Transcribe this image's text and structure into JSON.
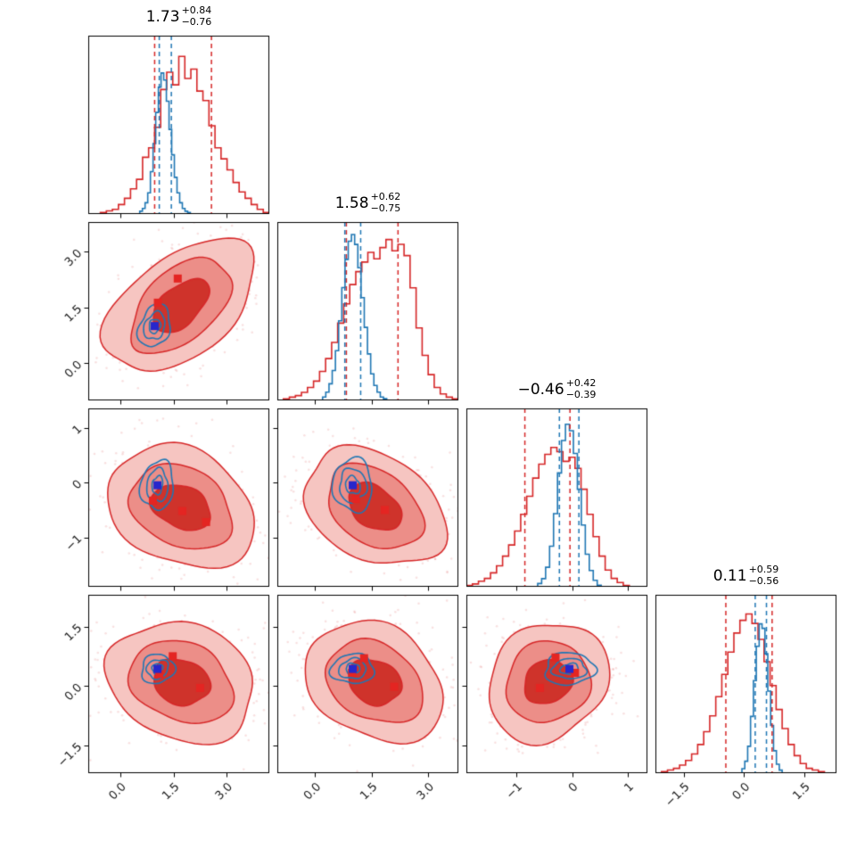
{
  "figure": {
    "type": "corner-plot",
    "background": "#ffffff"
  },
  "chart_data": {
    "type": "corner",
    "n_parameters": 4,
    "series": [
      {
        "name": "red",
        "color": "#d62728",
        "style": "filled-contours-scatter-histogram"
      },
      {
        "name": "blue",
        "color": "#1f77b4",
        "style": "contour-lines-histogram"
      }
    ],
    "colors": {
      "background": "#ffffff",
      "text": "#111111",
      "red_line": "#d62728",
      "red_fills": [
        "#f6c5c1",
        "#ec8e88",
        "#cf332b"
      ],
      "scatter": "rgba(217,65,62,0.16)",
      "blue_line": "#1f77b4",
      "red_marker": "#e42522",
      "blue_marker": "#2727cc"
    },
    "parameters": [
      {
        "title": {
          "median": "1.73",
          "plus": "+0.84",
          "minus": "−0.76"
        },
        "range": [
          -0.9,
          4.2
        ],
        "ticks": [
          0.0,
          1.5,
          3.0
        ],
        "tick_labels": [
          "0.0",
          "1.5",
          "3.0"
        ],
        "red": {
          "median": 1.73,
          "q16": 0.97,
          "q84": 2.57,
          "peak_scale": 0.95,
          "hist_range": [
            -0.9,
            4.2
          ],
          "hist": [
            0,
            0,
            0.01,
            0.02,
            0.03,
            0.06,
            0.1,
            0.16,
            0.22,
            0.36,
            0.42,
            0.55,
            0.79,
            0.9,
            0.82,
            1.0,
            0.86,
            0.92,
            0.78,
            0.72,
            0.56,
            0.42,
            0.35,
            0.28,
            0.2,
            0.14,
            0.1,
            0.06,
            0.03,
            0.01
          ]
        },
        "blue": {
          "mean": 1.26,
          "q16": 1.1,
          "q84": 1.44,
          "peak_scale": 0.85,
          "hist_range": [
            0.55,
            2.05
          ],
          "hist": [
            0.02,
            0.04,
            0.08,
            0.15,
            0.3,
            0.5,
            0.72,
            0.9,
            1.0,
            0.95,
            0.8,
            0.6,
            0.42,
            0.26,
            0.15,
            0.08,
            0.04,
            0.02,
            0.01,
            0.0
          ]
        }
      },
      {
        "title": {
          "median": "1.58",
          "plus": "+0.62",
          "minus": "−0.75"
        },
        "range": [
          -1.0,
          3.8
        ],
        "ticks": [
          0.0,
          1.5,
          3.0
        ],
        "tick_labels": [
          "0.0",
          "1.5",
          "3.0"
        ],
        "red": {
          "median": 1.58,
          "q16": 0.83,
          "q84": 2.2,
          "peak_scale": 0.97,
          "hist_range": [
            -1.0,
            3.8
          ],
          "hist": [
            0.0,
            0.01,
            0.02,
            0.03,
            0.05,
            0.08,
            0.12,
            0.18,
            0.26,
            0.36,
            0.48,
            0.6,
            0.72,
            0.8,
            0.86,
            0.92,
            0.88,
            0.95,
            1.0,
            0.93,
            0.97,
            0.9,
            0.7,
            0.45,
            0.28,
            0.16,
            0.08,
            0.04,
            0.02,
            0.01
          ]
        },
        "blue": {
          "mean": 1.0,
          "q16": 0.79,
          "q84": 1.21,
          "peak_scale": 1.0,
          "hist_range": [
            0.2,
            1.9
          ],
          "hist": [
            0.02,
            0.05,
            0.1,
            0.18,
            0.3,
            0.48,
            0.68,
            0.85,
            0.96,
            1.0,
            0.94,
            0.8,
            0.62,
            0.44,
            0.28,
            0.16,
            0.09,
            0.05,
            0.02,
            0.01
          ]
        }
      },
      {
        "title": {
          "median": "−0.46",
          "plus": "+0.42",
          "minus": "−0.39"
        },
        "range": [
          -1.9,
          1.35
        ],
        "ticks": [
          -1,
          0,
          1
        ],
        "tick_labels": [
          "−1",
          "0",
          "1"
        ],
        "red": {
          "median": -0.46,
          "q16": -0.85,
          "q84": -0.04,
          "peak_scale": 0.84,
          "hist_range": [
            -1.9,
            1.35
          ],
          "hist": [
            0.01,
            0.02,
            0.04,
            0.06,
            0.1,
            0.15,
            0.22,
            0.3,
            0.4,
            0.52,
            0.65,
            0.78,
            0.88,
            0.95,
            1.0,
            0.97,
            0.9,
            0.93,
            0.85,
            0.7,
            0.52,
            0.36,
            0.22,
            0.12,
            0.06,
            0.03,
            0.01,
            0.0,
            0.0,
            0.0
          ]
        },
        "blue": {
          "mean": -0.05,
          "q16": -0.23,
          "q84": 0.12,
          "peak_scale": 0.98,
          "hist_range": [
            -0.62,
            0.52
          ],
          "hist": [
            0.02,
            0.05,
            0.12,
            0.25,
            0.45,
            0.7,
            0.9,
            1.0,
            0.96,
            0.82,
            0.6,
            0.38,
            0.2,
            0.1,
            0.04,
            0.01
          ]
        }
      },
      {
        "title": {
          "median": "0.11",
          "plus": "+0.59",
          "minus": "−0.56"
        },
        "range": [
          -2.2,
          2.3
        ],
        "ticks": [
          -1.5,
          0.0,
          1.5
        ],
        "tick_labels": [
          "−1.5",
          "0.0",
          "1.5"
        ],
        "red": {
          "median": 0.11,
          "q16": -0.45,
          "q84": 0.7,
          "peak_scale": 0.96,
          "hist_range": [
            -2.2,
            2.3
          ],
          "hist": [
            0.0,
            0.01,
            0.02,
            0.03,
            0.05,
            0.08,
            0.12,
            0.18,
            0.26,
            0.36,
            0.48,
            0.62,
            0.76,
            0.88,
            0.96,
            1.0,
            0.94,
            0.84,
            0.7,
            0.55,
            0.4,
            0.28,
            0.18,
            0.11,
            0.06,
            0.03,
            0.02,
            0.01,
            0.0,
            0.0
          ]
        },
        "blue": {
          "mean": 0.42,
          "q16": 0.28,
          "q84": 0.56,
          "peak_scale": 0.9,
          "hist_range": [
            -0.05,
            0.95
          ],
          "hist": [
            0.03,
            0.08,
            0.18,
            0.38,
            0.62,
            0.85,
            1.0,
            0.97,
            0.8,
            0.55,
            0.32,
            0.15,
            0.06,
            0.02
          ]
        }
      }
    ],
    "pairs": [
      {
        "x": 0,
        "y": 1,
        "red": {
          "center": [
            1.7,
            1.55
          ],
          "sigma": [
            0.8,
            0.7
          ],
          "rho": 0.5
        },
        "blue": {
          "center": [
            0.97,
            1.0
          ],
          "sigma": [
            0.17,
            0.22
          ],
          "rho": 0.15
        },
        "red_markers": [
          [
            1.62,
            2.28
          ],
          [
            1.06,
            1.63
          ]
        ],
        "blue_marker": [
          0.97,
          1.0
        ]
      },
      {
        "x": 0,
        "y": 2,
        "red": {
          "center": [
            1.72,
            -0.45
          ],
          "sigma": [
            0.82,
            0.42
          ],
          "rho": -0.25
        },
        "blue": {
          "center": [
            1.05,
            -0.05
          ],
          "sigma": [
            0.17,
            0.18
          ],
          "rho": 0.1
        },
        "red_markers": [
          [
            0.92,
            -0.33
          ],
          [
            1.75,
            -0.52
          ],
          [
            2.42,
            -0.72
          ]
        ],
        "blue_marker": [
          1.05,
          -0.05
        ]
      },
      {
        "x": 1,
        "y": 2,
        "red": {
          "center": [
            1.58,
            -0.45
          ],
          "sigma": [
            0.72,
            0.42
          ],
          "rho": -0.35
        },
        "blue": {
          "center": [
            1.0,
            -0.05
          ],
          "sigma": [
            0.21,
            0.18
          ],
          "rho": -0.1
        },
        "red_markers": [
          [
            1.08,
            -0.3
          ],
          [
            1.85,
            -0.5
          ]
        ],
        "blue_marker": [
          1.0,
          -0.05
        ]
      },
      {
        "x": 0,
        "y": 3,
        "red": {
          "center": [
            1.72,
            0.1
          ],
          "sigma": [
            0.82,
            0.57
          ],
          "rho": -0.18
        },
        "blue": {
          "center": [
            1.05,
            0.43
          ],
          "sigma": [
            0.17,
            0.15
          ],
          "rho": 0.1
        },
        "red_markers": [
          [
            1.48,
            0.75
          ],
          [
            1.1,
            0.3
          ],
          [
            2.25,
            -0.05
          ]
        ],
        "blue_marker": [
          1.05,
          0.43
        ]
      },
      {
        "x": 1,
        "y": 3,
        "red": {
          "center": [
            1.58,
            0.1
          ],
          "sigma": [
            0.72,
            0.57
          ],
          "rho": -0.22
        },
        "blue": {
          "center": [
            1.0,
            0.43
          ],
          "sigma": [
            0.21,
            0.15
          ],
          "rho": 0.0
        },
        "red_markers": [
          [
            1.3,
            0.7
          ],
          [
            0.98,
            0.33
          ],
          [
            2.1,
            -0.02
          ]
        ],
        "blue_marker": [
          1.0,
          0.43
        ]
      },
      {
        "x": 2,
        "y": 3,
        "red": {
          "center": [
            -0.44,
            0.1
          ],
          "sigma": [
            0.42,
            0.57
          ],
          "rho": 0.12
        },
        "blue": {
          "center": [
            -0.05,
            0.43
          ],
          "sigma": [
            0.18,
            0.15
          ],
          "rho": 0.1
        },
        "red_markers": [
          [
            -0.3,
            0.72
          ],
          [
            -0.58,
            -0.05
          ],
          [
            0.05,
            0.33
          ]
        ],
        "blue_marker": [
          -0.05,
          0.43
        ]
      }
    ]
  }
}
